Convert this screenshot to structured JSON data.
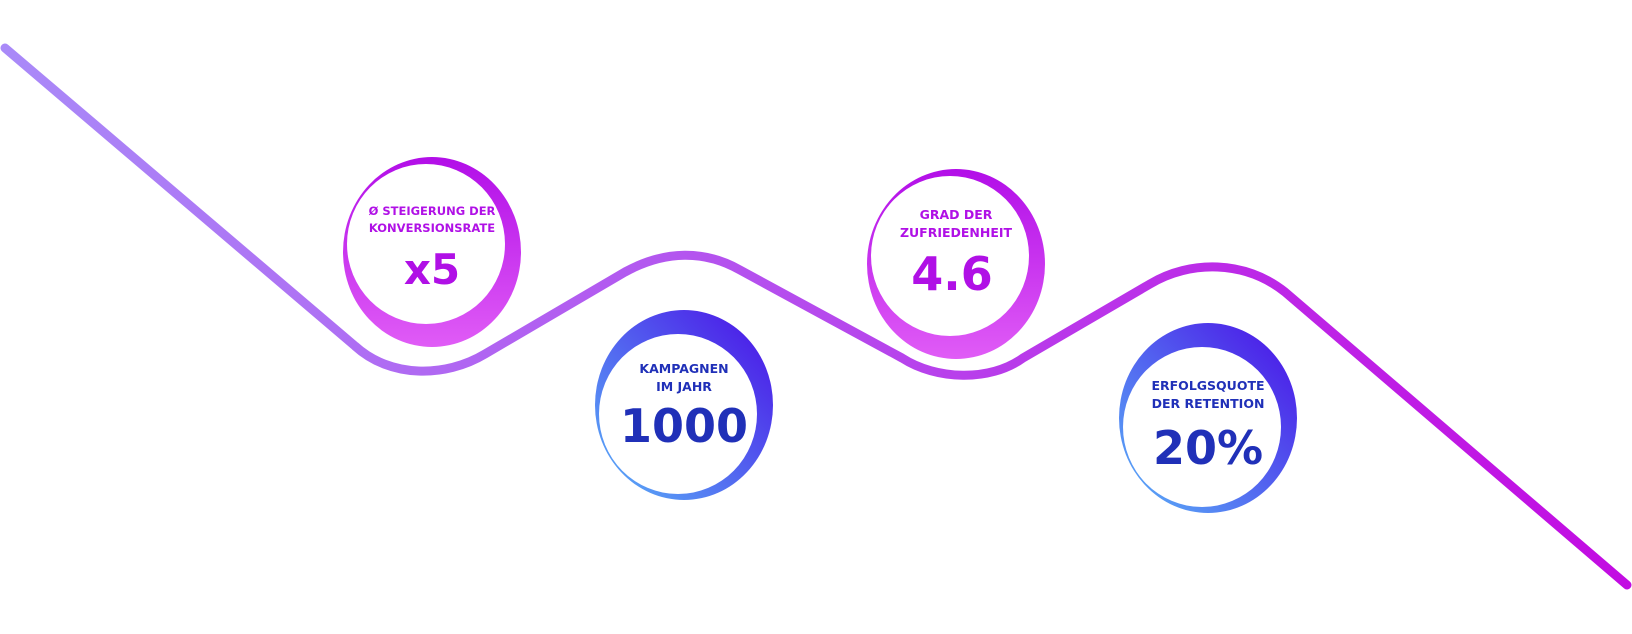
{
  "colors": {
    "line_start": "#a98af8",
    "line_end": "#c20be2",
    "purple_stat_text": "#b010e6",
    "blue_stat_text": "#2030b8",
    "ring_purple_top": "#b20ee8",
    "ring_purple_bottom": "#e05cf6",
    "ring_blue_top": "#4a0de6",
    "ring_blue_bottom": "#5ab4f8"
  },
  "stats": [
    {
      "label_line1": "Ø STEIGERUNG DER",
      "label_line2": "KONVERSIONSRATE",
      "value": "x5",
      "theme": "purple"
    },
    {
      "label_line1": "KAMPAGNEN",
      "label_line2": "IM JAHR",
      "value": "1000",
      "theme": "blue"
    },
    {
      "label_line1": "GRAD DER",
      "label_line2": "ZUFRIEDENHEIT",
      "value": "4.6",
      "theme": "purple"
    },
    {
      "label_line1": "ERFOLGSQUOTE",
      "label_line2": "DER RETENTION",
      "value": "20%",
      "theme": "blue"
    }
  ]
}
